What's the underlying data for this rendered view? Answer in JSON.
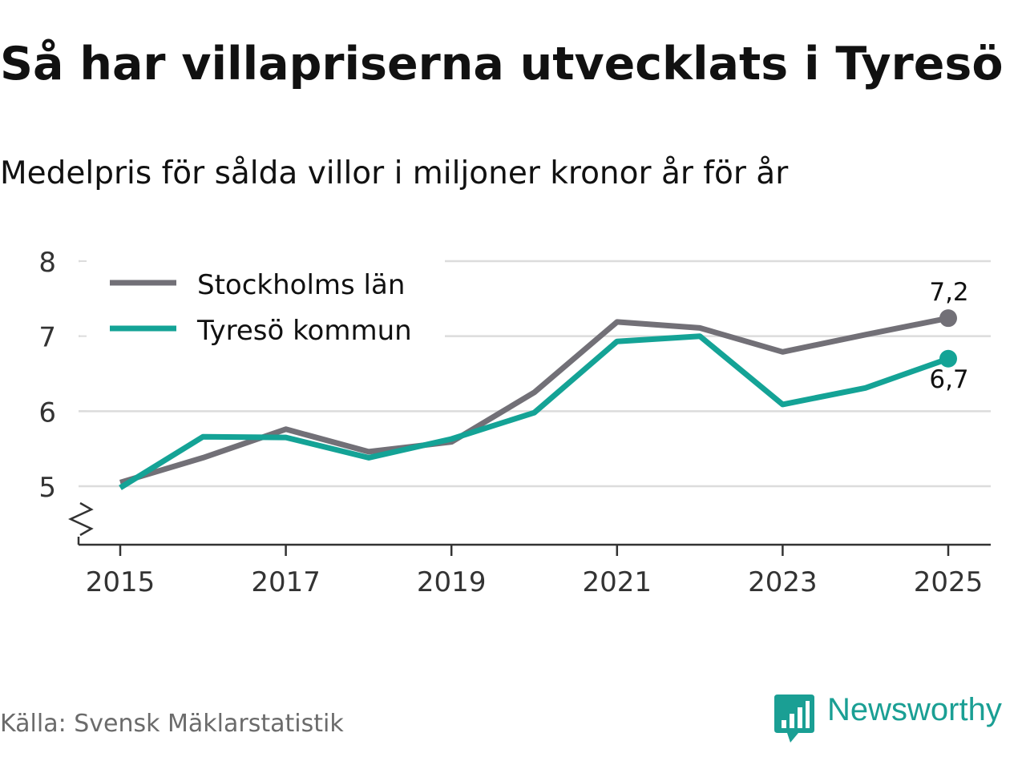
{
  "title": "Så har villapriserna utvecklats i Tyresö",
  "subtitle": "Medelpris för sålda villor i miljoner kronor år för år",
  "source": "Källa: Svensk Mäklarstatistik",
  "brand": {
    "name": "Newsworthy",
    "icon": "newsworthy-logo-icon",
    "color": "#1a9f94"
  },
  "colors": {
    "stockholm": "#727077",
    "tyreso": "#14a396",
    "grid": "#dcdcdc",
    "axis": "#333333"
  },
  "chart_data": {
    "type": "line",
    "title": "Så har villapriserna utvecklats i Tyresö",
    "subtitle": "Medelpris för sålda villor i miljoner kronor år för år",
    "xlabel": "",
    "ylabel": "",
    "x": [
      2015,
      2016,
      2017,
      2018,
      2019,
      2020,
      2021,
      2022,
      2023,
      2024,
      2025
    ],
    "x_ticks": [
      "2015",
      "2017",
      "2019",
      "2021",
      "2023",
      "2025"
    ],
    "y_ticks": [
      "5",
      "6",
      "7",
      "8"
    ],
    "ylim": [
      4.25,
      8
    ],
    "xlim": [
      2014.5,
      2025.5
    ],
    "grid": true,
    "legend_position": "top-left",
    "series": [
      {
        "name": "Stockholms län",
        "color": "#727077",
        "values": [
          5.05,
          5.38,
          5.76,
          5.46,
          5.59,
          6.25,
          7.19,
          7.11,
          6.79,
          7.02,
          7.24
        ],
        "end_label": "7,2"
      },
      {
        "name": "Tyresö kommun",
        "color": "#14a396",
        "values": [
          4.98,
          5.66,
          5.65,
          5.38,
          5.63,
          5.98,
          6.93,
          7.0,
          6.09,
          6.31,
          6.7
        ],
        "end_label": "6,7"
      }
    ]
  }
}
